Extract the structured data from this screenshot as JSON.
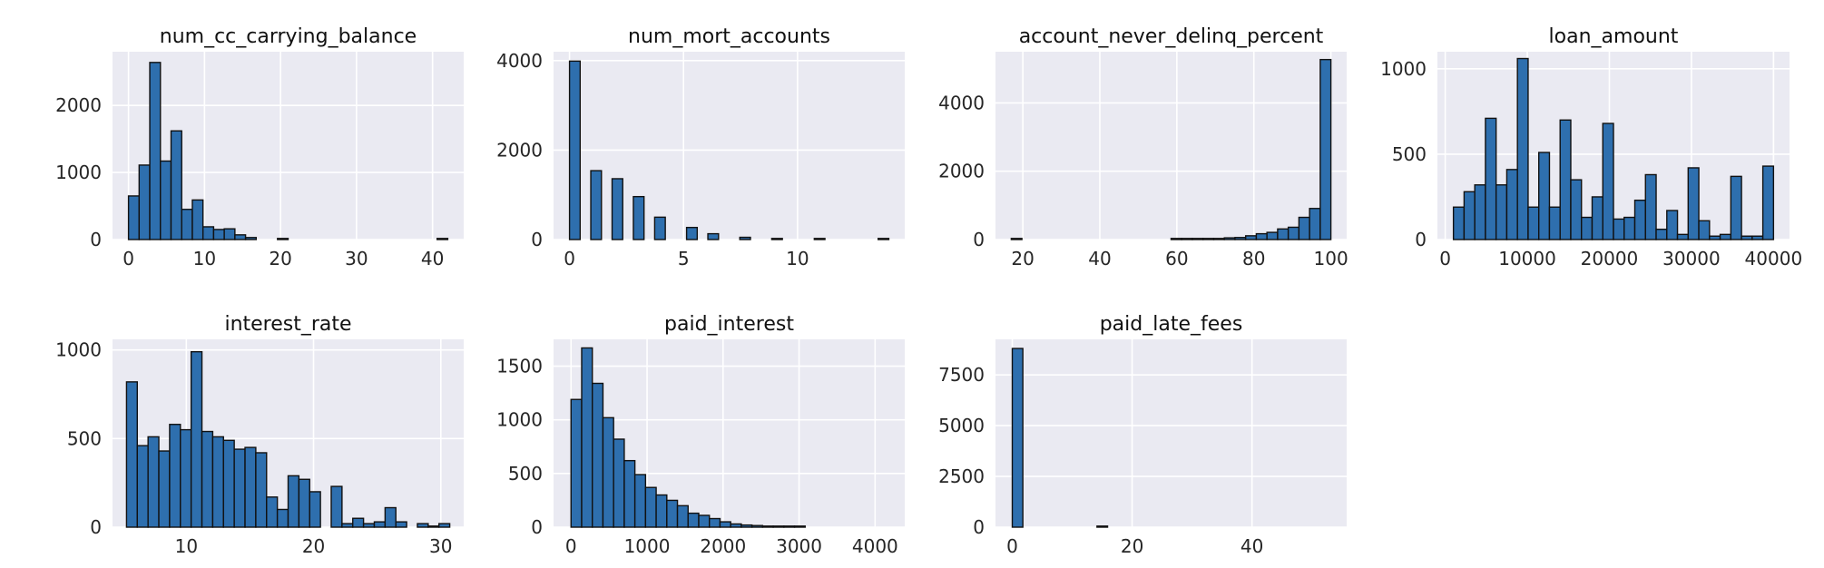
{
  "chart_data": [
    {
      "type": "bar",
      "title": "num_cc_carrying_balance",
      "xlim": [
        -2.1,
        44.1
      ],
      "ylim": [
        0,
        2800
      ],
      "xticks": [
        {
          "v": 0,
          "label": "0"
        },
        {
          "v": 10,
          "label": "10"
        },
        {
          "v": 20,
          "label": "20"
        },
        {
          "v": 30,
          "label": "30"
        },
        {
          "v": 40,
          "label": "40"
        }
      ],
      "yticks": [
        {
          "v": 0,
          "label": "0"
        },
        {
          "v": 1000,
          "label": "1000"
        },
        {
          "v": 2000,
          "label": "2000"
        }
      ],
      "bin_start": 0,
      "bin_width": 1.4,
      "values": [
        650,
        1110,
        2640,
        1170,
        1620,
        450,
        590,
        190,
        150,
        160,
        70,
        30,
        0,
        0,
        15,
        0,
        0,
        0,
        0,
        0,
        0,
        0,
        0,
        0,
        0,
        0,
        0,
        0,
        0,
        5
      ]
    },
    {
      "type": "bar",
      "title": "num_mort_accounts",
      "xlim": [
        -0.7,
        14.7
      ],
      "ylim": [
        0,
        4200
      ],
      "xticks": [
        {
          "v": 0,
          "label": "0"
        },
        {
          "v": 5,
          "label": "5"
        },
        {
          "v": 10,
          "label": "10"
        }
      ],
      "yticks": [
        {
          "v": 0,
          "label": "0"
        },
        {
          "v": 2000,
          "label": "2000"
        },
        {
          "v": 4000,
          "label": "4000"
        }
      ],
      "bin_start": 0,
      "bin_width": 0.4667,
      "values": [
        3990,
        0,
        1540,
        0,
        1360,
        0,
        960,
        0,
        500,
        0,
        0,
        270,
        0,
        130,
        0,
        0,
        50,
        0,
        0,
        15,
        0,
        0,
        0,
        5,
        0,
        0,
        0,
        0,
        0,
        2
      ]
    },
    {
      "type": "bar",
      "title": "account_never_delinq_percent",
      "xlim": [
        12.9,
        104.1
      ],
      "ylim": [
        0,
        5500
      ],
      "xticks": [
        {
          "v": 20,
          "label": "20"
        },
        {
          "v": 40,
          "label": "40"
        },
        {
          "v": 60,
          "label": "60"
        },
        {
          "v": 80,
          "label": "80"
        },
        {
          "v": 100,
          "label": "100"
        }
      ],
      "yticks": [
        {
          "v": 0,
          "label": "0"
        },
        {
          "v": 2000,
          "label": "2000"
        },
        {
          "v": 4000,
          "label": "4000"
        }
      ],
      "bin_start": 17,
      "bin_width": 2.7667,
      "values": [
        2,
        0,
        0,
        0,
        0,
        0,
        0,
        0,
        0,
        0,
        0,
        0,
        0,
        0,
        0,
        3,
        5,
        10,
        20,
        30,
        50,
        60,
        110,
        170,
        210,
        310,
        360,
        650,
        910,
        5270
      ]
    },
    {
      "type": "bar",
      "title": "loan_amount",
      "xlim": [
        -950,
        41950
      ],
      "ylim": [
        0,
        1100
      ],
      "xticks": [
        {
          "v": 0,
          "label": "0"
        },
        {
          "v": 10000,
          "label": "10000"
        },
        {
          "v": 20000,
          "label": "20000"
        },
        {
          "v": 30000,
          "label": "30000"
        },
        {
          "v": 40000,
          "label": "40000"
        }
      ],
      "yticks": [
        {
          "v": 0,
          "label": "0"
        },
        {
          "v": 500,
          "label": "500"
        },
        {
          "v": 1000,
          "label": "1000"
        }
      ],
      "bin_start": 1000,
      "bin_width": 1300,
      "values": [
        190,
        280,
        320,
        710,
        320,
        410,
        1060,
        190,
        510,
        190,
        700,
        350,
        130,
        250,
        680,
        120,
        130,
        230,
        380,
        60,
        170,
        30,
        420,
        110,
        20,
        30,
        370,
        20,
        20,
        430
      ]
    },
    {
      "type": "bar",
      "title": "interest_rate",
      "xlim": [
        4.2,
        31.8
      ],
      "ylim": [
        0,
        1060
      ],
      "xticks": [
        {
          "v": 10,
          "label": "10"
        },
        {
          "v": 20,
          "label": "20"
        },
        {
          "v": 30,
          "label": "30"
        }
      ],
      "yticks": [
        {
          "v": 0,
          "label": "0"
        },
        {
          "v": 500,
          "label": "500"
        },
        {
          "v": 1000,
          "label": "1000"
        }
      ],
      "bin_start": 5.3,
      "bin_width": 0.8467,
      "values": [
        820,
        460,
        510,
        430,
        580,
        550,
        990,
        540,
        510,
        490,
        440,
        450,
        420,
        170,
        100,
        290,
        270,
        200,
        0,
        230,
        20,
        50,
        20,
        30,
        110,
        30,
        0,
        20,
        5,
        20
      ]
    },
    {
      "type": "bar",
      "title": "paid_interest",
      "xlim": [
        -230,
        4390
      ],
      "ylim": [
        0,
        1750
      ],
      "xticks": [
        {
          "v": 0,
          "label": "0"
        },
        {
          "v": 1000,
          "label": "1000"
        },
        {
          "v": 2000,
          "label": "2000"
        },
        {
          "v": 3000,
          "label": "3000"
        },
        {
          "v": 4000,
          "label": "4000"
        }
      ],
      "yticks": [
        {
          "v": 0,
          "label": "0"
        },
        {
          "v": 500,
          "label": "500"
        },
        {
          "v": 1000,
          "label": "1000"
        },
        {
          "v": 1500,
          "label": "1500"
        }
      ],
      "bin_start": 0,
      "bin_width": 140,
      "values": [
        1190,
        1670,
        1340,
        1020,
        820,
        620,
        490,
        370,
        300,
        250,
        200,
        130,
        110,
        80,
        50,
        30,
        20,
        15,
        5,
        5,
        3,
        2,
        0,
        0,
        0,
        0,
        0,
        0,
        0,
        0
      ]
    },
    {
      "type": "bar",
      "title": "paid_late_fees",
      "xlim": [
        -2.8,
        55.8
      ],
      "ylim": [
        0,
        9250
      ],
      "xticks": [
        {
          "v": 0,
          "label": "0"
        },
        {
          "v": 20,
          "label": "20"
        },
        {
          "v": 40,
          "label": "40"
        }
      ],
      "yticks": [
        {
          "v": 0,
          "label": "0"
        },
        {
          "v": 2500,
          "label": "2500"
        },
        {
          "v": 5000,
          "label": "5000"
        },
        {
          "v": 7500,
          "label": "7500"
        }
      ],
      "bin_start": 0,
      "bin_width": 1.767,
      "values": [
        8800,
        0,
        0,
        0,
        0,
        0,
        0,
        0,
        30,
        0,
        0,
        0,
        0,
        0,
        0,
        0,
        0,
        0,
        0,
        0,
        0,
        0,
        0,
        0,
        0,
        0,
        0,
        0,
        0,
        0
      ]
    }
  ]
}
